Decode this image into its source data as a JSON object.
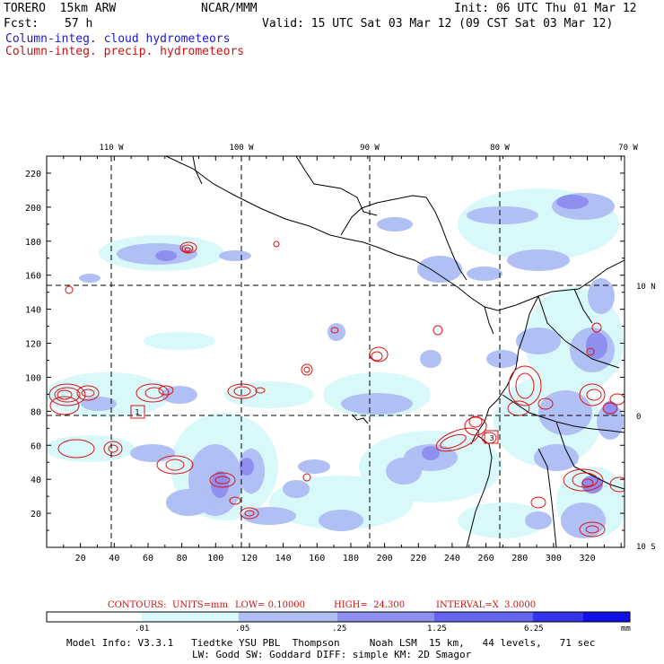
{
  "header": {
    "model": "TORERO  15km ARW",
    "org": "NCAR/MMM",
    "init": "Init: 06 UTC Thu 01 Mar 12",
    "fcst_label": "Fcst:",
    "fcst_value": "57 h",
    "valid": "Valid: 15 UTC Sat 03 Mar 12 (09 CST Sat 03 Mar 12)",
    "legend_cloud": "Column-integ. cloud hydrometeors",
    "legend_precip": "Column-integ. precip. hydrometeors"
  },
  "axes": {
    "top_lon_labels": [
      "110 W",
      "100 W",
      "90 W",
      "80 W",
      "70 W"
    ],
    "right_lat_labels": [
      "10 N",
      "0",
      "10 S"
    ],
    "left_ticks": [
      "220",
      "200",
      "180",
      "160",
      "140",
      "120",
      "100",
      "80",
      "60",
      "40",
      "20"
    ],
    "bottom_ticks": [
      "20",
      "40",
      "60",
      "80",
      "100",
      "120",
      "140",
      "160",
      "180",
      "200",
      "220",
      "240",
      "260",
      "280",
      "300",
      "320"
    ]
  },
  "contours": {
    "label": "CONTOURS:",
    "units": "UNITS=mm",
    "low": "LOW= 0.10000",
    "high": "HIGH=  24.300",
    "interval": "INTERVAL=X  3.0000"
  },
  "colorbar": {
    "labels": [
      ".01",
      ".05",
      ".25",
      "1.25",
      "6.25"
    ],
    "unit": "mm",
    "colors": [
      "#ffffff",
      "#d8f8fa",
      "#b0bff4",
      "#8f8ff0",
      "#6464ee",
      "#3434ea",
      "#1010e6"
    ]
  },
  "model_info": {
    "line1": "Model Info: V3.3.1   Tiedtke YSU PBL  Thompson     Noah LSM  15 km,   44 levels,   71 sec",
    "line2": "LW: Godd SW: Goddard DIFF: simple KM: 2D Smagor"
  },
  "station_labels": [
    "1",
    "3"
  ]
}
